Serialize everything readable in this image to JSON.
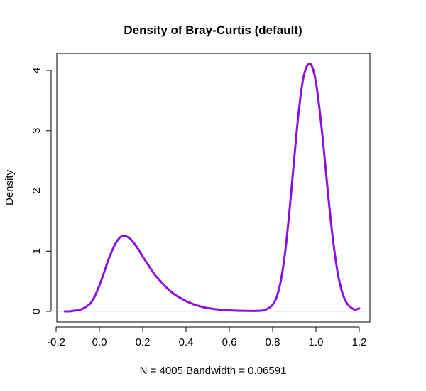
{
  "chart_data": {
    "type": "line",
    "title": "Density of Bray-Curtis (default)",
    "xlabel": "N = 4005   Bandwidth = 0.06591",
    "ylabel": "Density",
    "xlim": [
      -0.2,
      1.2
    ],
    "ylim": [
      0,
      4
    ],
    "x_ticks": [
      -0.2,
      0.0,
      0.2,
      0.4,
      0.6,
      0.8,
      1.0,
      1.2
    ],
    "x_tick_labels": [
      "-0.2",
      "0.0",
      "0.2",
      "0.4",
      "0.6",
      "0.8",
      "1.0",
      "1.2"
    ],
    "y_ticks": [
      0,
      1,
      2,
      3,
      4
    ],
    "y_tick_labels": [
      "0",
      "1",
      "2",
      "3",
      "4"
    ],
    "grid": false,
    "legend": "none",
    "baseline_y": 0,
    "line_color": "#8B10E0",
    "baseline_color": "#e6e6e6",
    "series": [
      {
        "x": [
          -0.16,
          -0.14,
          -0.12,
          -0.1,
          -0.08,
          -0.06,
          -0.04,
          -0.02,
          0.0,
          0.02,
          0.04,
          0.06,
          0.08,
          0.1,
          0.12,
          0.14,
          0.16,
          0.18,
          0.2,
          0.22,
          0.24,
          0.26,
          0.28,
          0.3,
          0.32,
          0.34,
          0.36,
          0.38,
          0.4,
          0.42,
          0.44,
          0.46,
          0.48,
          0.5,
          0.52,
          0.54,
          0.56,
          0.58,
          0.6,
          0.62,
          0.64,
          0.66,
          0.68,
          0.7,
          0.72,
          0.74,
          0.76,
          0.78,
          0.8,
          0.82,
          0.84,
          0.86,
          0.88,
          0.9,
          0.92,
          0.94,
          0.96,
          0.98,
          1.0,
          1.02,
          1.04,
          1.06,
          1.08,
          1.1,
          1.12,
          1.14,
          1.16,
          1.18,
          1.2
        ],
        "y": [
          0.0,
          0.0,
          0.01,
          0.02,
          0.04,
          0.08,
          0.14,
          0.26,
          0.43,
          0.63,
          0.84,
          1.02,
          1.16,
          1.24,
          1.25,
          1.21,
          1.13,
          1.03,
          0.91,
          0.8,
          0.69,
          0.59,
          0.51,
          0.43,
          0.36,
          0.3,
          0.25,
          0.21,
          0.17,
          0.14,
          0.11,
          0.09,
          0.07,
          0.055,
          0.045,
          0.035,
          0.028,
          0.022,
          0.018,
          0.015,
          0.012,
          0.01,
          0.009,
          0.008,
          0.008,
          0.01,
          0.02,
          0.05,
          0.11,
          0.25,
          0.55,
          1.05,
          1.75,
          2.55,
          3.3,
          3.84,
          4.08,
          4.08,
          3.8,
          3.25,
          2.55,
          1.8,
          1.15,
          0.65,
          0.33,
          0.15,
          0.07,
          0.03,
          0.05
        ]
      }
    ]
  }
}
